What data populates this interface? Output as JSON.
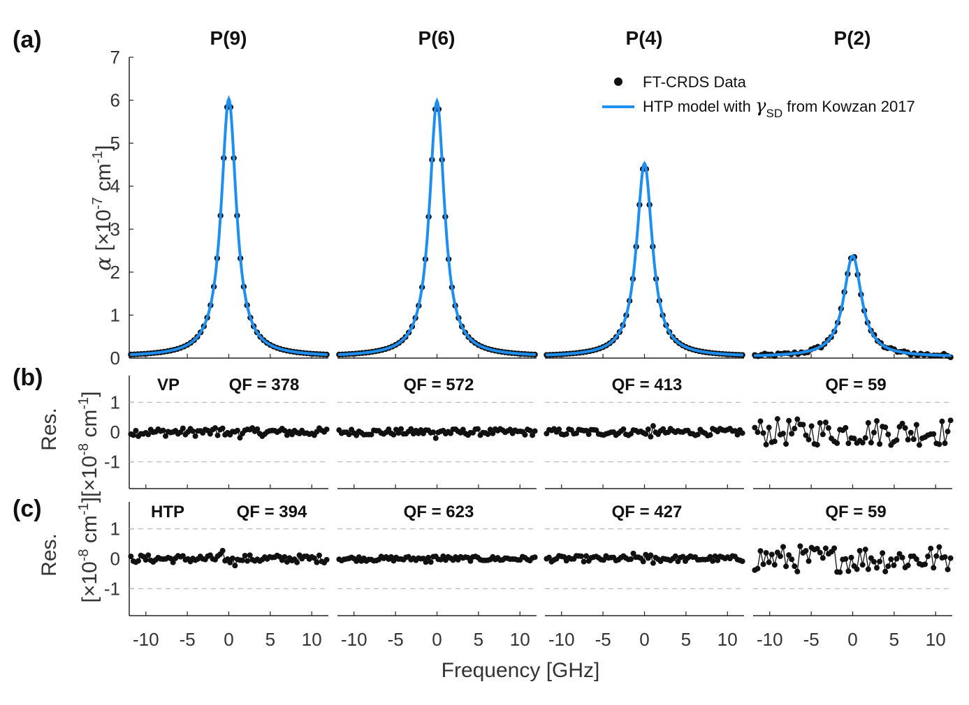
{
  "panel_labels": [
    "(a)",
    "(b)",
    "(c)"
  ],
  "titles": [
    "P(9)",
    "P(6)",
    "P(4)",
    "P(2)"
  ],
  "xlabel": "Frequency [GHz]",
  "ylabel_a": {
    "symbol": "α",
    "text": "[×10",
    "exp": "-7",
    "unit": " cm",
    "unit_exp": "-1",
    "close": "]"
  },
  "ylabel_res": {
    "top": "Res.",
    "text": "[×10",
    "exp": "-8",
    "unit": " cm",
    "unit_exp": "-1",
    "close": "]"
  },
  "legend": {
    "data_label": "FT-CRDS Data",
    "model_label_pre": "HTP model with ",
    "model_symbol": "γ",
    "model_sub": "SD",
    "model_label_post": " from Kowzan 2017"
  },
  "model_labels": {
    "b": "VP",
    "c": "HTP"
  },
  "qf_labels": {
    "b": [
      "QF = 378",
      "QF = 572",
      "QF = 413",
      "QF = 59"
    ],
    "c": [
      "QF = 394",
      "QF = 623",
      "QF = 427",
      "QF = 59"
    ]
  },
  "x_ticks": [
    "-10",
    "-5",
    "0",
    "5",
    "10"
  ],
  "y_ticks_a": [
    "0",
    "1",
    "2",
    "3",
    "4",
    "5",
    "6",
    "7"
  ],
  "y_ticks_res": [
    "-1",
    "0",
    "1"
  ],
  "colors": {
    "data": "#111111",
    "model": "#1f8ef1",
    "grid": "#bbbbbb",
    "axis": "#222222"
  },
  "chart_data": [
    {
      "type": "line",
      "panel": "a",
      "title": "P(9) / P(6) / P(4) / P(2)",
      "xlabel": "Frequency [GHz]",
      "ylabel": "α [×10^-7 cm^-1]",
      "xlim": [
        -12,
        12
      ],
      "ylim": [
        0,
        7
      ],
      "series": [
        {
          "name": "P(9)",
          "peak": 6.0,
          "hwhm_GHz": 1.1
        },
        {
          "name": "P(6)",
          "peak": 5.95,
          "hwhm_GHz": 1.1
        },
        {
          "name": "P(4)",
          "peak": 4.5,
          "hwhm_GHz": 1.15
        },
        {
          "name": "P(2)",
          "peak": 2.35,
          "hwhm_GHz": 1.3
        }
      ],
      "legend": [
        "FT-CRDS Data",
        "HTP model with γSD from Kowzan 2017"
      ]
    },
    {
      "type": "scatter",
      "panel": "b",
      "ylabel": "Res. [×10^-8 cm^-1]",
      "ylim": [
        -1.9,
        1.9
      ],
      "model": "VP",
      "qf": [
        378,
        572,
        413,
        59
      ],
      "noise_amplitude": [
        0.14,
        0.11,
        0.12,
        0.45
      ]
    },
    {
      "type": "scatter",
      "panel": "c",
      "ylabel": "Res. [×10^-8 cm^-1]",
      "ylim": [
        -1.9,
        1.9
      ],
      "model": "HTP",
      "qf": [
        394,
        623,
        427,
        59
      ],
      "noise_amplitude": [
        0.13,
        0.08,
        0.1,
        0.45
      ]
    }
  ]
}
